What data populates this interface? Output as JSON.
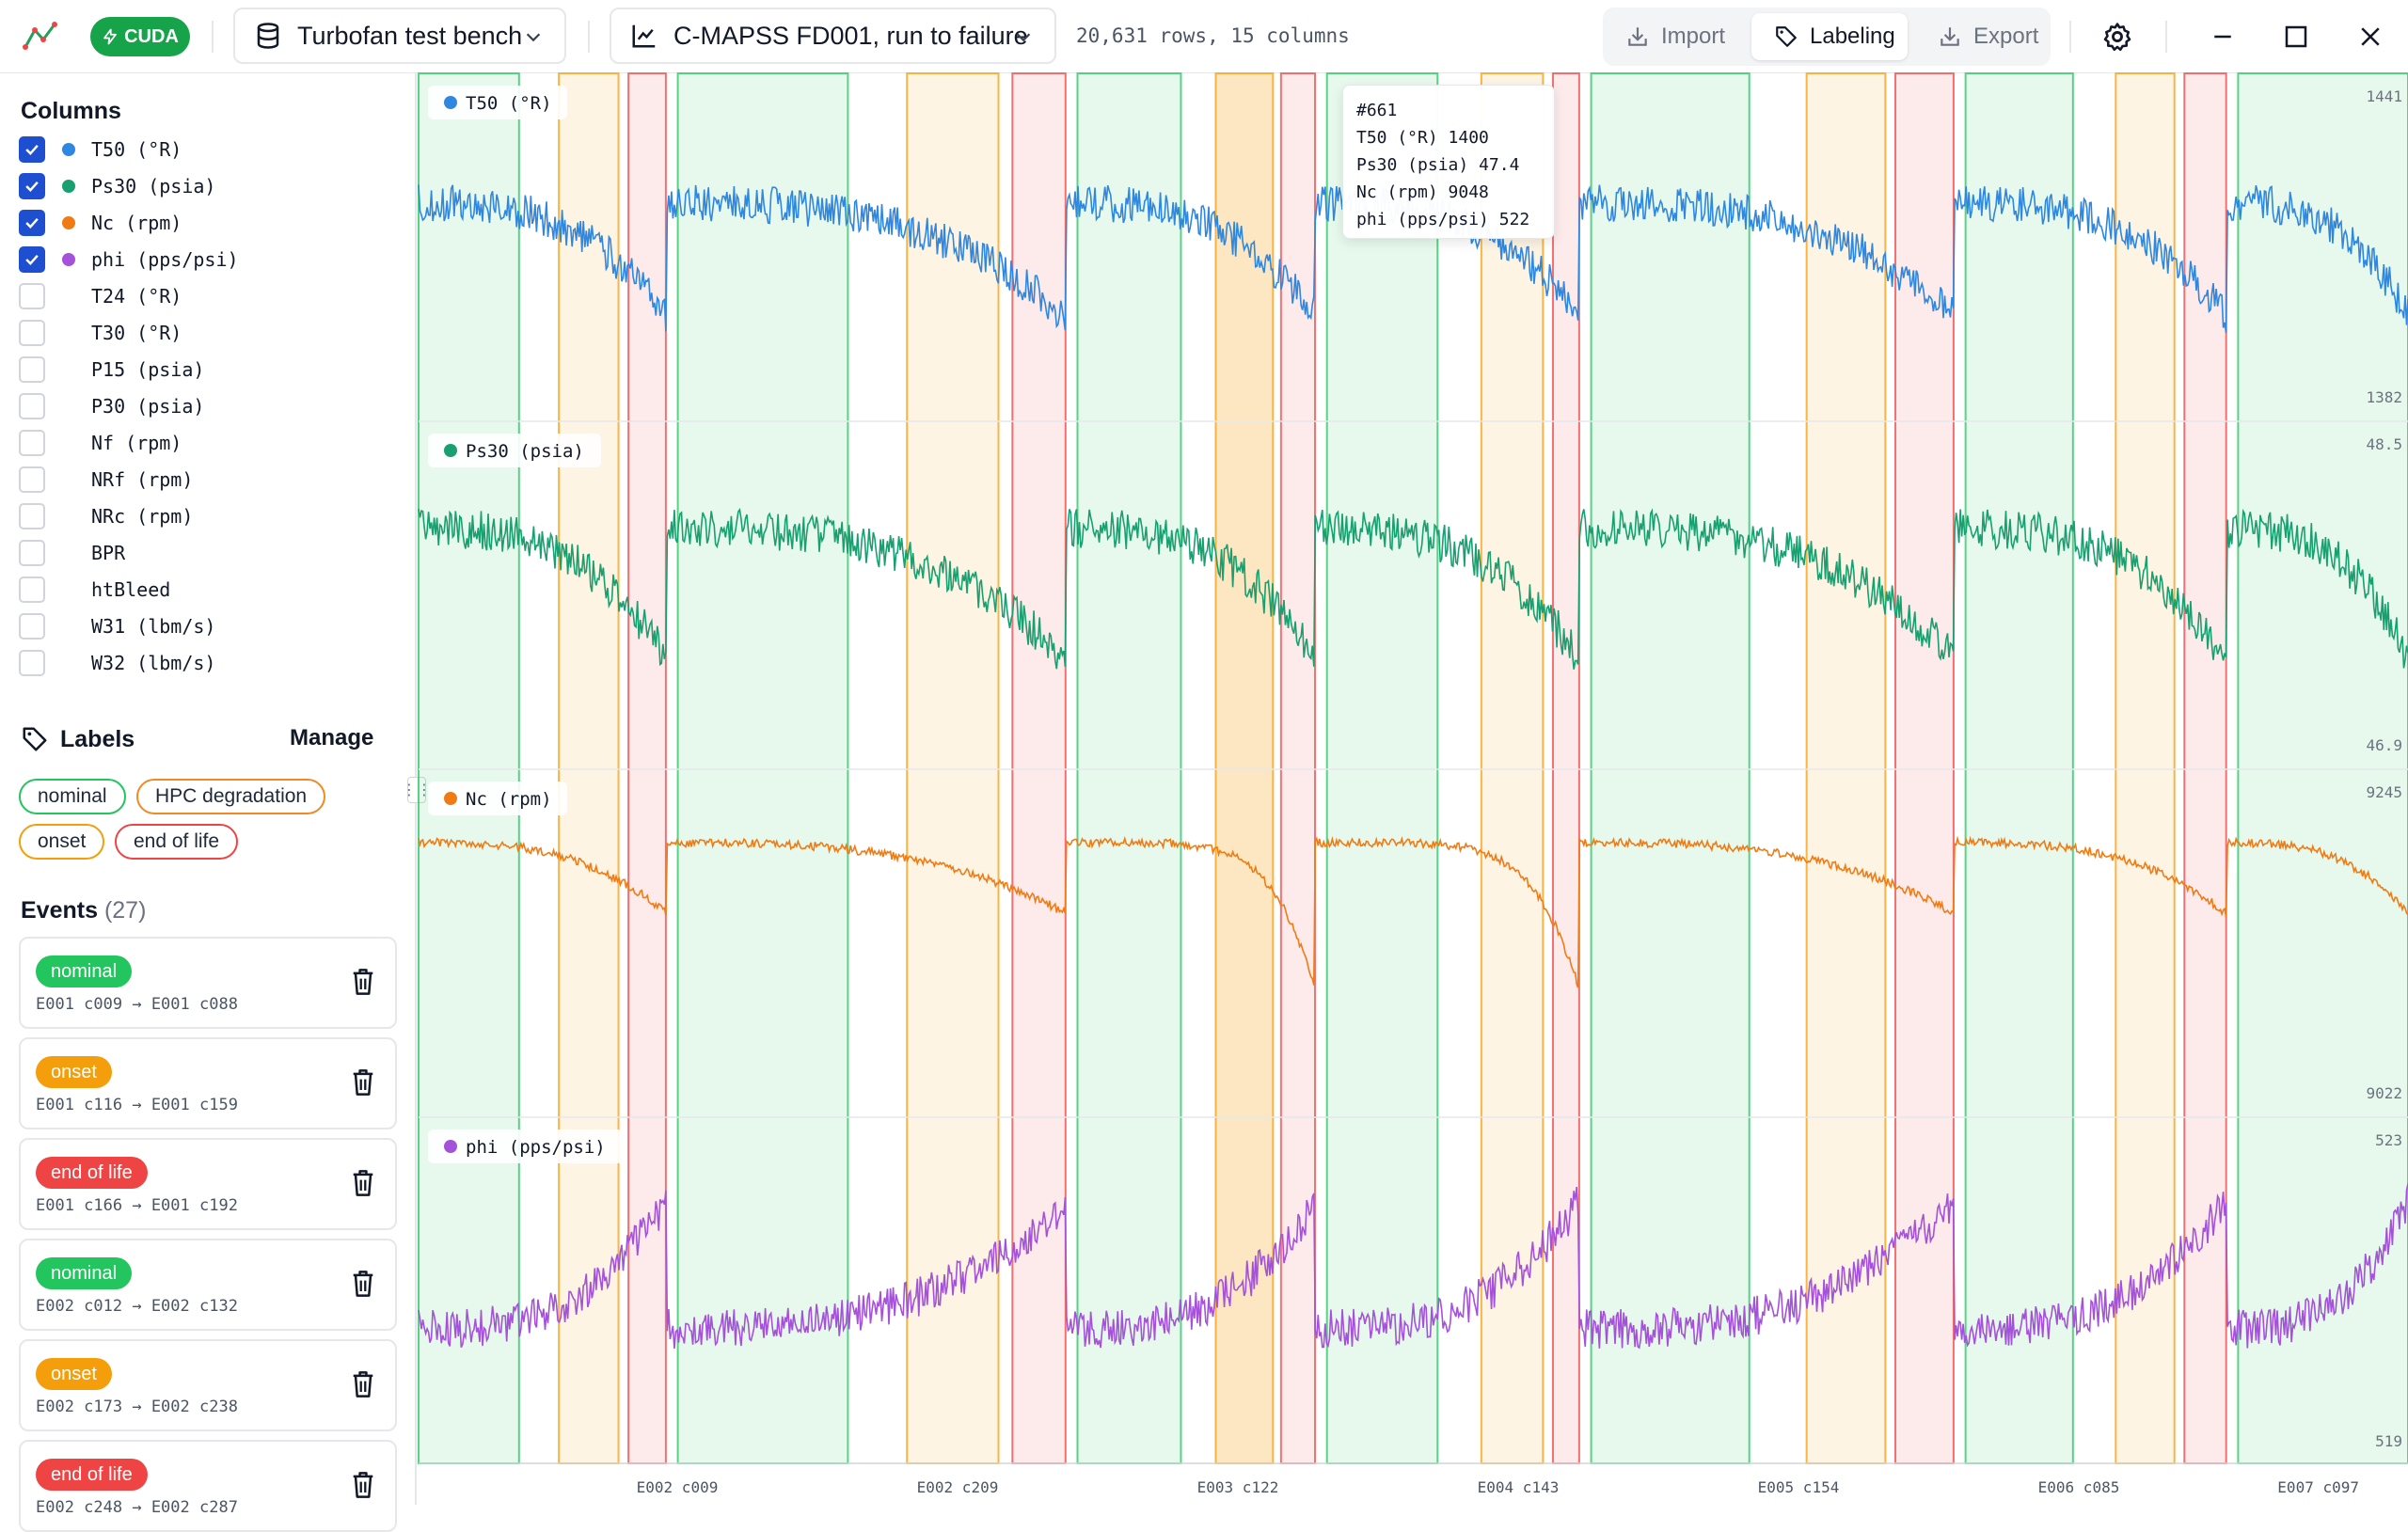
{
  "app": {
    "cuda_label": "CUDA",
    "project": "Turbofan test bench",
    "dataset": "C-MAPSS FD001, run to failure",
    "row_info": "20,631 rows, 15 columns",
    "modes": {
      "import": "Import",
      "labeling": "Labeling",
      "export": "Export",
      "active": "Labeling"
    }
  },
  "sidebar": {
    "columns_title": "Columns",
    "columns": [
      {
        "label": "T50 (°R)",
        "checked": true,
        "color": "#2f87e0"
      },
      {
        "label": "Ps30 (psia)",
        "checked": true,
        "color": "#18a070"
      },
      {
        "label": "Nc (rpm)",
        "checked": true,
        "color": "#f07b14"
      },
      {
        "label": "phi (pps/psi)",
        "checked": true,
        "color": "#a352d9"
      },
      {
        "label": "T24 (°R)",
        "checked": false
      },
      {
        "label": "T30 (°R)",
        "checked": false
      },
      {
        "label": "P15 (psia)",
        "checked": false
      },
      {
        "label": "P30 (psia)",
        "checked": false
      },
      {
        "label": "Nf (rpm)",
        "checked": false
      },
      {
        "label": "NRf (rpm)",
        "checked": false
      },
      {
        "label": "NRc (rpm)",
        "checked": false
      },
      {
        "label": "BPR",
        "checked": false
      },
      {
        "label": "htBleed",
        "checked": false
      },
      {
        "label": "W31 (lbm/s)",
        "checked": false
      },
      {
        "label": "W32 (lbm/s)",
        "checked": false
      }
    ],
    "labels_title": "Labels",
    "manage_label": "Manage",
    "labels": [
      {
        "name": "nominal",
        "color": "#22c55e"
      },
      {
        "name": "HPC degradation",
        "color": "#f08a24"
      },
      {
        "name": "onset",
        "color": "#f59e0b"
      },
      {
        "name": "end of life",
        "color": "#ef4444"
      }
    ],
    "events_title": "Events",
    "events_count": "(27)",
    "events": [
      {
        "label": "nominal",
        "color": "#22c55e",
        "range": "E001 c009 → E001 c088"
      },
      {
        "label": "onset",
        "color": "#f59e0b",
        "range": "E001 c116 → E001 c159"
      },
      {
        "label": "end of life",
        "color": "#ef4444",
        "range": "E001 c166 → E001 c192"
      },
      {
        "label": "nominal",
        "color": "#22c55e",
        "range": "E002 c012 → E002 c132"
      },
      {
        "label": "onset",
        "color": "#f59e0b",
        "range": "E002 c173 → E002 c238"
      },
      {
        "label": "end of life",
        "color": "#ef4444",
        "range": "E002 c248 → E002 c287"
      }
    ]
  },
  "chart": {
    "panels": [
      {
        "name": "T50 (°R)",
        "color": "#2f87e0",
        "ymax": "1441",
        "ymin": "1382"
      },
      {
        "name": "Ps30 (psia)",
        "color": "#18a070",
        "ymax": "48.5",
        "ymin": "46.9"
      },
      {
        "name": "Nc (rpm)",
        "color": "#f07b14",
        "ymax": "9245",
        "ymin": "9022"
      },
      {
        "name": "phi (pps/psi)",
        "color": "#a352d9",
        "ymax": "523",
        "ymin": "519"
      }
    ],
    "x_ticks": [
      "E002 c009",
      "E002 c209",
      "E003 c122",
      "E004 c143",
      "E005 c154",
      "E006 c085",
      "E007 c097"
    ],
    "engine_starts": [
      0,
      0.1243,
      0.3252,
      0.4506,
      0.5834,
      0.7716,
      0.9086
    ],
    "regions": [
      {
        "type": "nominal",
        "start": 0.0,
        "end": 0.0505
      },
      {
        "type": "onset",
        "start": 0.0705,
        "end": 0.1005
      },
      {
        "type": "end of life",
        "start": 0.1055,
        "end": 0.1243
      },
      {
        "type": "nominal",
        "start": 0.1303,
        "end": 0.2158
      },
      {
        "type": "onset",
        "start": 0.2455,
        "end": 0.2915
      },
      {
        "type": "end of life",
        "start": 0.2985,
        "end": 0.3252
      },
      {
        "type": "nominal",
        "start": 0.3312,
        "end": 0.3832
      },
      {
        "type": "onset",
        "start": 0.4007,
        "end": 0.4295,
        "selected": true
      },
      {
        "type": "end of life",
        "start": 0.4335,
        "end": 0.4506
      },
      {
        "type": "nominal",
        "start": 0.4566,
        "end": 0.5122
      },
      {
        "type": "onset",
        "start": 0.5342,
        "end": 0.5652
      },
      {
        "type": "end of life",
        "start": 0.5702,
        "end": 0.5834
      },
      {
        "type": "nominal",
        "start": 0.5894,
        "end": 0.6689
      },
      {
        "type": "onset",
        "start": 0.6977,
        "end": 0.7373
      },
      {
        "type": "end of life",
        "start": 0.7423,
        "end": 0.7716
      },
      {
        "type": "nominal",
        "start": 0.7776,
        "end": 0.8316
      },
      {
        "type": "onset",
        "start": 0.8531,
        "end": 0.8826
      },
      {
        "type": "end of life",
        "start": 0.8876,
        "end": 0.9086
      },
      {
        "type": "nominal",
        "start": 0.9146,
        "end": 1.0
      }
    ],
    "region_colors": {
      "nominal": "#22c55e",
      "onset": "#f59e0b",
      "end of life": "#ef4444"
    },
    "tooltip": {
      "index": "#661",
      "rows": [
        {
          "label": "T50 (°R)",
          "value": "1400"
        },
        {
          "label": "Ps30 (psia)",
          "value": "47.4"
        },
        {
          "label": "Nc (rpm)",
          "value": "9048"
        },
        {
          "label": "phi (pps/psi)",
          "value": "522"
        }
      ]
    }
  }
}
